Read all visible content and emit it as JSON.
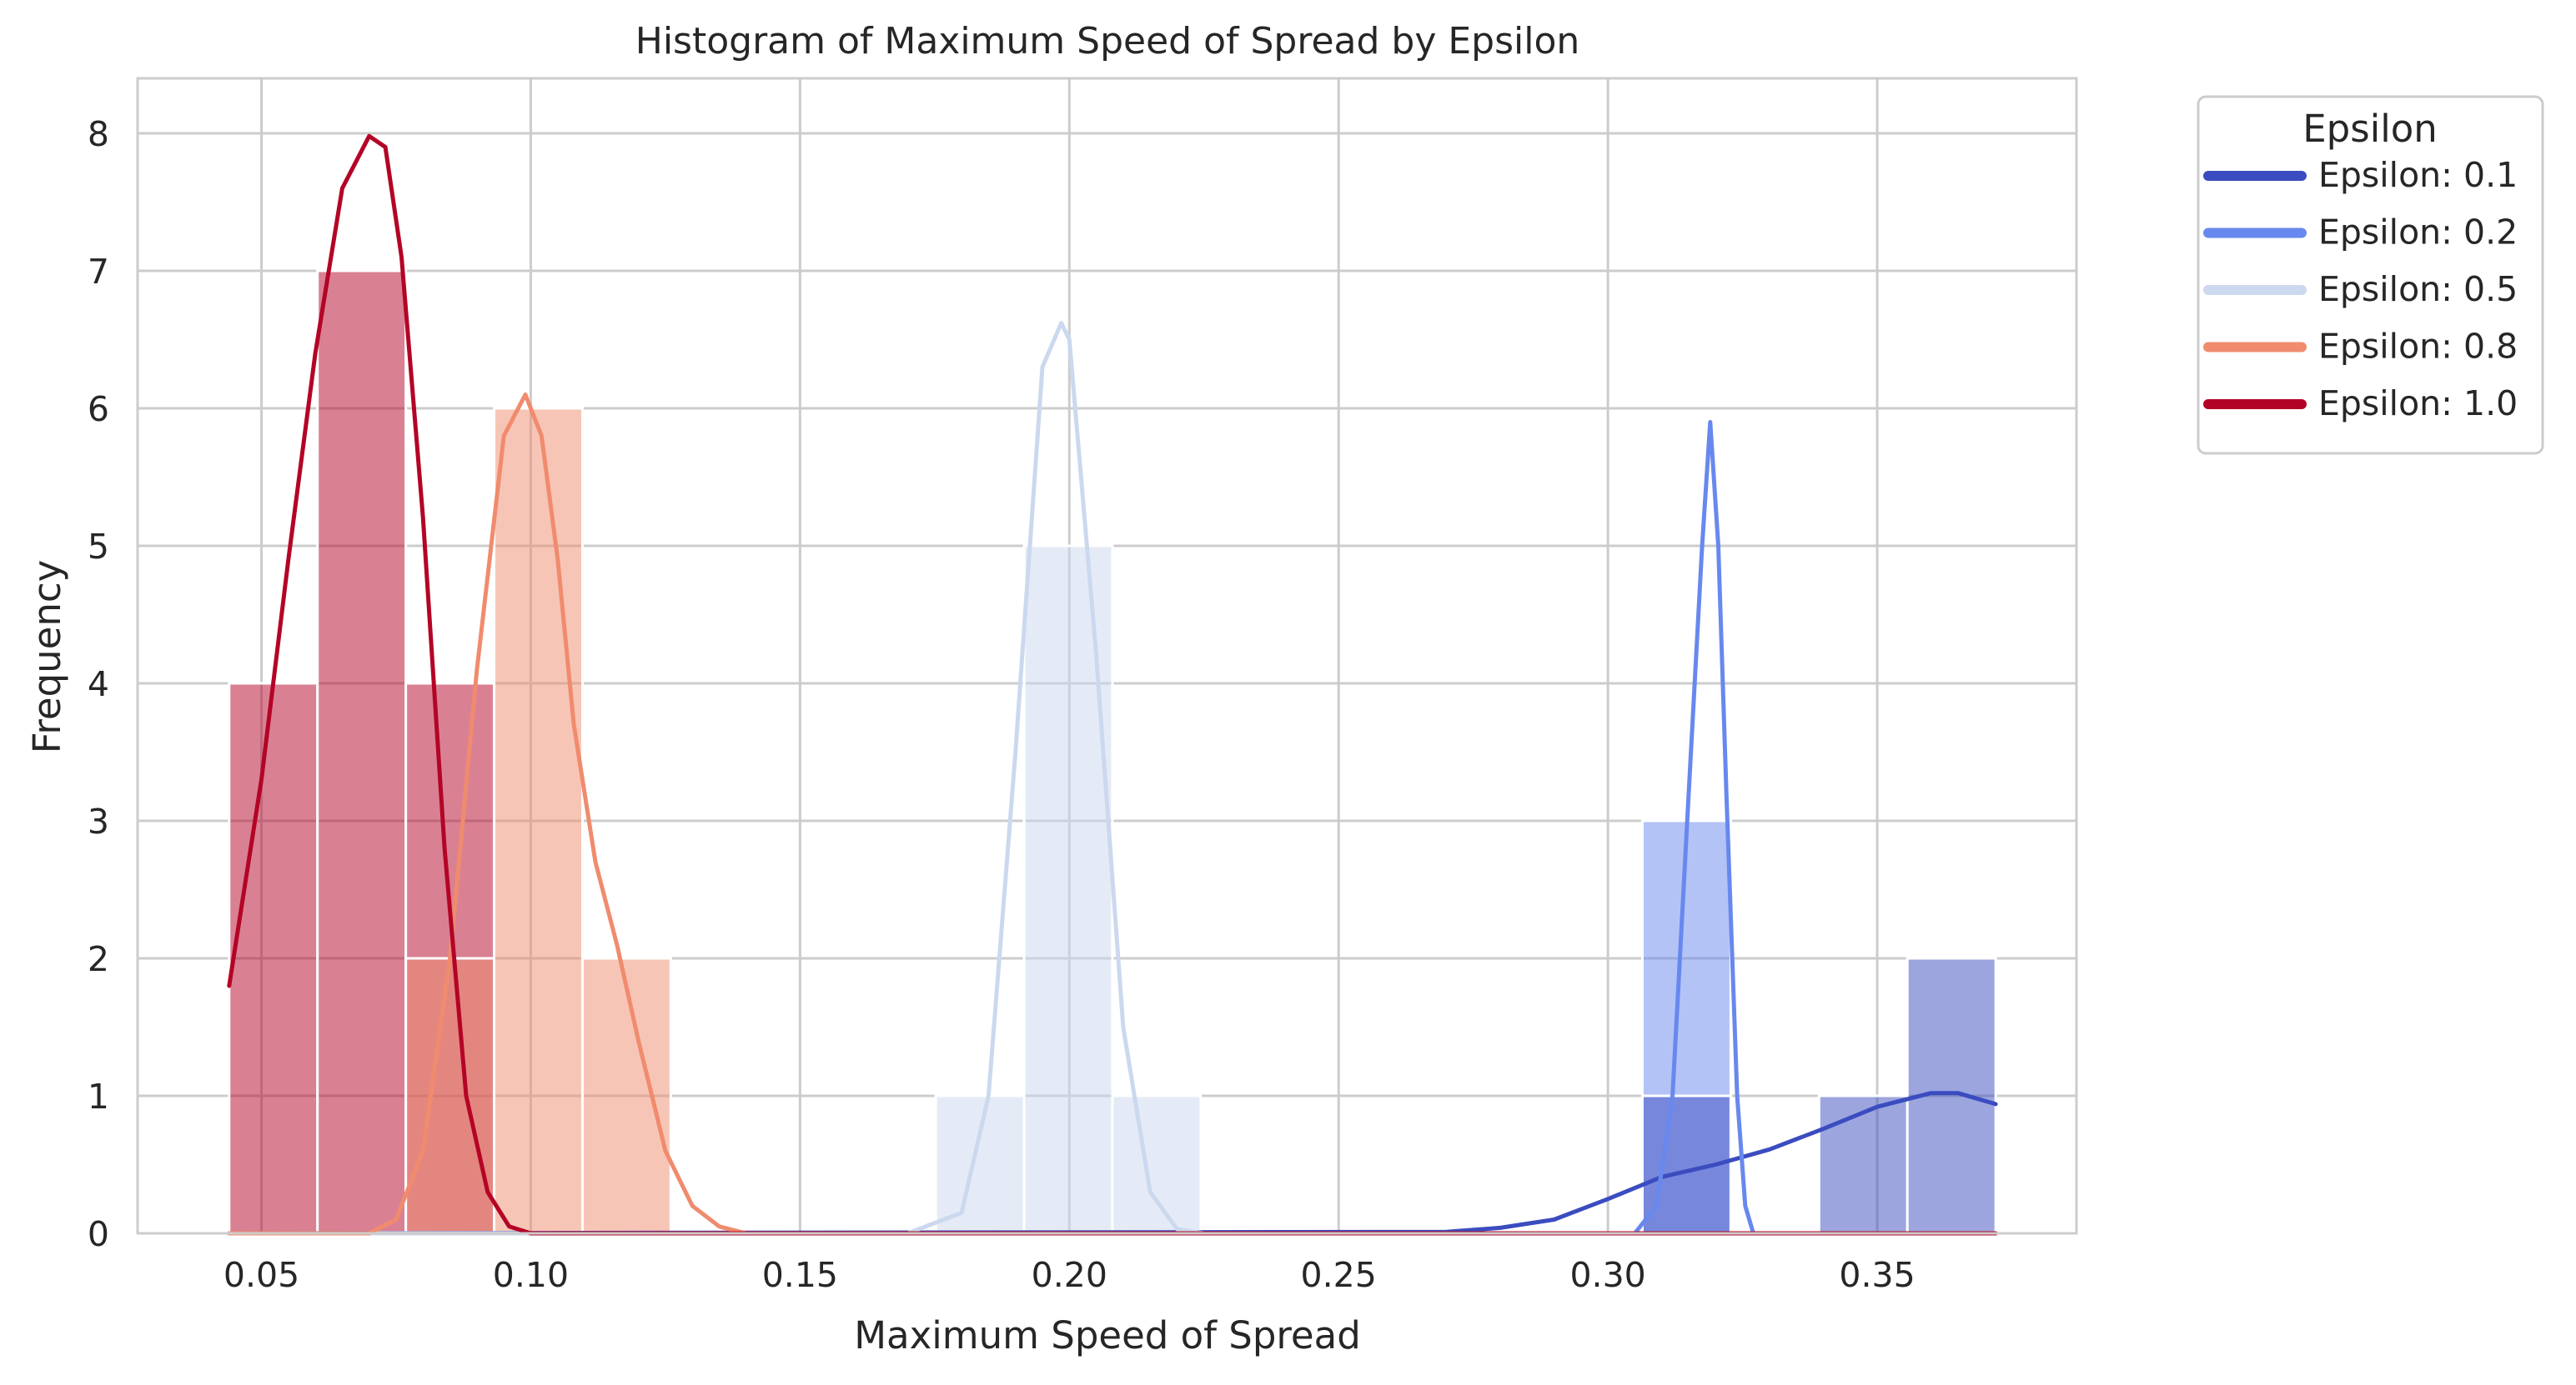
{
  "chart_data": {
    "type": "bar",
    "title": "Histogram of Maximum Speed of Spread by Epsilon",
    "xlabel": "Maximum Speed of Spread",
    "ylabel": "Frequency",
    "xlim": [
      0.027,
      0.387
    ],
    "ylim": [
      0,
      8.4
    ],
    "xticks": [
      0.05,
      0.1,
      0.15,
      0.2,
      0.25,
      0.3,
      0.35
    ],
    "xtick_labels": [
      "0.05",
      "0.10",
      "0.15",
      "0.20",
      "0.25",
      "0.30",
      "0.35"
    ],
    "yticks": [
      0,
      1,
      2,
      3,
      4,
      5,
      6,
      7,
      8
    ],
    "ytick_labels": [
      "0",
      "1",
      "2",
      "3",
      "4",
      "5",
      "6",
      "7",
      "8"
    ],
    "grid": true,
    "bin_width": 0.0164,
    "legend": {
      "title": "Epsilon",
      "position": "outside-top-right",
      "entries": [
        "Epsilon: 0.1",
        "Epsilon: 0.2",
        "Epsilon: 0.5",
        "Epsilon: 0.8",
        "Epsilon: 1.0"
      ]
    },
    "series": [
      {
        "name": "Epsilon: 0.1",
        "color": "#3b4cc0",
        "bins": [
          {
            "x0": 0.3064,
            "count": 1
          },
          {
            "x0": 0.3392,
            "count": 1
          },
          {
            "x0": 0.3556,
            "count": 2
          }
        ],
        "kde": [
          [
            0.044,
            0
          ],
          [
            0.27,
            0.01
          ],
          [
            0.28,
            0.04
          ],
          [
            0.29,
            0.1
          ],
          [
            0.3,
            0.25
          ],
          [
            0.31,
            0.41
          ],
          [
            0.32,
            0.5
          ],
          [
            0.33,
            0.61
          ],
          [
            0.34,
            0.76
          ],
          [
            0.35,
            0.92
          ],
          [
            0.36,
            1.02
          ],
          [
            0.365,
            1.02
          ],
          [
            0.372,
            0.94
          ]
        ]
      },
      {
        "name": "Epsilon: 0.2",
        "color": "#6788ee",
        "bins": [
          {
            "x0": 0.3064,
            "count": 3
          }
        ],
        "kde": [
          [
            0.044,
            0
          ],
          [
            0.305,
            0
          ],
          [
            0.309,
            0.2
          ],
          [
            0.312,
            1.0
          ],
          [
            0.315,
            3.2
          ],
          [
            0.3175,
            5.0
          ],
          [
            0.319,
            5.9
          ],
          [
            0.3205,
            5.0
          ],
          [
            0.322,
            3.2
          ],
          [
            0.324,
            1.0
          ],
          [
            0.3255,
            0.2
          ],
          [
            0.327,
            0
          ],
          [
            0.372,
            0
          ]
        ]
      },
      {
        "name": "Epsilon: 0.5",
        "color": "#cbd8ee",
        "bins": [
          {
            "x0": 0.1752,
            "count": 1
          },
          {
            "x0": 0.1916,
            "count": 5
          },
          {
            "x0": 0.208,
            "count": 1
          }
        ],
        "kde": [
          [
            0.044,
            0
          ],
          [
            0.17,
            0
          ],
          [
            0.18,
            0.15
          ],
          [
            0.185,
            1.0
          ],
          [
            0.19,
            3.5
          ],
          [
            0.195,
            6.3
          ],
          [
            0.1985,
            6.62
          ],
          [
            0.2,
            6.5
          ],
          [
            0.205,
            4.2
          ],
          [
            0.21,
            1.5
          ],
          [
            0.215,
            0.3
          ],
          [
            0.22,
            0.03
          ],
          [
            0.225,
            0
          ],
          [
            0.372,
            0
          ]
        ]
      },
      {
        "name": "Epsilon: 0.8",
        "color": "#f08b6e",
        "bins": [
          {
            "x0": 0.0768,
            "count": 2
          },
          {
            "x0": 0.0932,
            "count": 6
          },
          {
            "x0": 0.1096,
            "count": 2
          }
        ],
        "kde": [
          [
            0.044,
            0
          ],
          [
            0.07,
            0
          ],
          [
            0.075,
            0.1
          ],
          [
            0.08,
            0.6
          ],
          [
            0.085,
            2.0
          ],
          [
            0.09,
            4.1
          ],
          [
            0.095,
            5.8
          ],
          [
            0.099,
            6.1
          ],
          [
            0.102,
            5.8
          ],
          [
            0.105,
            4.9
          ],
          [
            0.108,
            3.7
          ],
          [
            0.112,
            2.7
          ],
          [
            0.116,
            2.1
          ],
          [
            0.12,
            1.4
          ],
          [
            0.125,
            0.6
          ],
          [
            0.13,
            0.2
          ],
          [
            0.135,
            0.05
          ],
          [
            0.14,
            0
          ],
          [
            0.372,
            0
          ]
        ]
      },
      {
        "name": "Epsilon: 1.0",
        "color": "#b40426",
        "bins": [
          {
            "x0": 0.044,
            "count": 4
          },
          {
            "x0": 0.0604,
            "count": 7
          },
          {
            "x0": 0.0768,
            "count": 4
          }
        ],
        "kde": [
          [
            0.044,
            1.8
          ],
          [
            0.05,
            3.3
          ],
          [
            0.055,
            4.9
          ],
          [
            0.06,
            6.4
          ],
          [
            0.065,
            7.6
          ],
          [
            0.07,
            7.98
          ],
          [
            0.073,
            7.9
          ],
          [
            0.076,
            7.1
          ],
          [
            0.08,
            5.2
          ],
          [
            0.084,
            2.8
          ],
          [
            0.088,
            1.0
          ],
          [
            0.092,
            0.3
          ],
          [
            0.096,
            0.05
          ],
          [
            0.1,
            0
          ],
          [
            0.372,
            0
          ]
        ]
      }
    ]
  }
}
